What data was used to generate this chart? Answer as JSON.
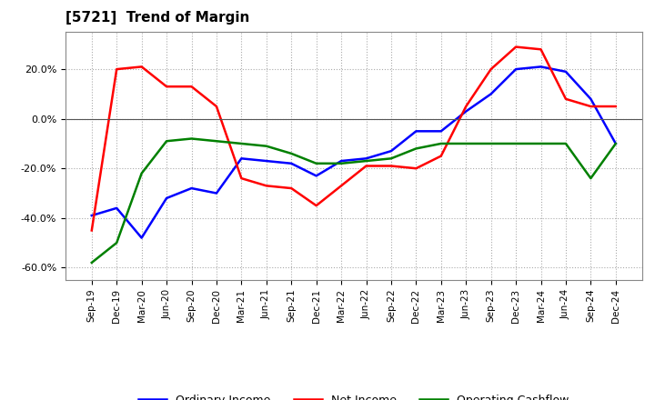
{
  "title": "[5721]  Trend of Margin",
  "x_labels": [
    "Sep-19",
    "Dec-19",
    "Mar-20",
    "Jun-20",
    "Sep-20",
    "Dec-20",
    "Mar-21",
    "Jun-21",
    "Sep-21",
    "Dec-21",
    "Mar-22",
    "Jun-22",
    "Sep-22",
    "Dec-22",
    "Mar-23",
    "Jun-23",
    "Sep-23",
    "Dec-23",
    "Mar-24",
    "Jun-24",
    "Sep-24",
    "Dec-24"
  ],
  "ordinary_income": [
    -39,
    -36,
    -48,
    -32,
    -28,
    -30,
    -16,
    -17,
    -18,
    -23,
    -17,
    -16,
    -13,
    -5,
    -5,
    3,
    10,
    20,
    21,
    19,
    8,
    -10
  ],
  "net_income": [
    -45,
    20,
    21,
    13,
    13,
    5,
    -24,
    -27,
    -28,
    -35,
    -27,
    -19,
    -19,
    -20,
    -15,
    5,
    20,
    29,
    28,
    8,
    5,
    5
  ],
  "operating_cashflow": [
    -58,
    -50,
    -22,
    -9,
    -8,
    -9,
    -10,
    -11,
    -14,
    -18,
    -18,
    -17,
    -16,
    -12,
    -10,
    -10,
    -10,
    -10,
    -10,
    -10,
    -24,
    -10
  ],
  "ylim": [
    -65,
    35
  ],
  "yticks": [
    -60,
    -40,
    -20,
    0,
    20
  ],
  "line_colors": {
    "ordinary_income": "blue",
    "net_income": "red",
    "operating_cashflow": "green"
  },
  "legend": [
    "Ordinary Income",
    "Net Income",
    "Operating Cashflow"
  ],
  "background_color": "#ffffff",
  "grid_color": "#aaaaaa"
}
